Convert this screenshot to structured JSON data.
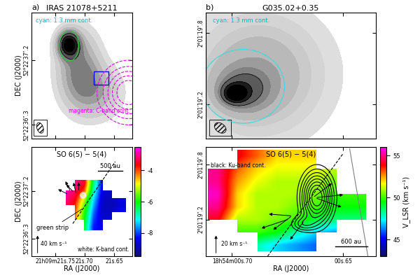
{
  "chart_data": [
    {
      "type": "contour",
      "panel": "a)",
      "title": "IRAS 21078+5211",
      "xlim": [
        21.79,
        21.619
      ],
      "ylim": [
        36.11,
        37.86
      ],
      "xticks": [
        21.75,
        21.7,
        21.65
      ],
      "yticks": [
        {
          "value": 37.2,
          "label": "52°22′37″.2"
        },
        {
          "value": 36.3,
          "label": "52°22′36″.3"
        }
      ],
      "tick_labels": "y",
      "y_label": "DEC (J2000)",
      "upper_note": {
        "text": "cyan: 1.3 mm cont.",
        "color": "#00b5c8"
      },
      "lower_note": {
        "text": "magenta: C-band cont.",
        "color": "#e000e0"
      },
      "image": {
        "color": "black",
        "components": [
          {
            "x": 21.727,
            "y": 37.42,
            "sx": 0.012,
            "sy": 0.12,
            "amp": 1.0
          },
          {
            "x": 21.71,
            "y": 37.1,
            "sx": 0.025,
            "sy": 0.35,
            "amp": 0.45
          },
          {
            "x": 21.68,
            "y": 36.75,
            "sx": 0.03,
            "sy": 0.25,
            "amp": 0.3
          }
        ],
        "fill_levels": [
          0.08,
          0.15,
          0.25,
          0.35,
          0.45,
          0.6,
          0.8,
          1.0
        ],
        "line_levels": [
          0.6,
          0.8,
          1.0,
          1.2
        ]
      },
      "contours": [
        {
          "color": "#2ecc40",
          "line_style": "solid",
          "components": [
            {
              "x": 21.726,
              "y": 37.4,
              "sx": 0.014,
              "sy": 0.18,
              "amp": 1.0
            }
          ],
          "levels": [
            0.5
          ]
        },
        {
          "color": "#e000e0",
          "line_style": "dashed",
          "components": [
            {
              "x": 21.625,
              "y": 36.75,
              "sx": 0.03,
              "sy": 0.25,
              "amp": 1.0
            }
          ],
          "levels": [
            0.2,
            0.35,
            0.5,
            0.65,
            0.8
          ]
        }
      ],
      "box": {
        "x": [
          21.684,
          21.659
        ],
        "y": [
          36.86,
          37.04
        ],
        "color": "blue"
      }
    },
    {
      "type": "contour",
      "panel": "b)",
      "title": "G035.02+0.35",
      "xlim": [
        0.7118,
        0.6353
      ],
      "ylim": [
        18.91,
        19.97
      ],
      "xticks": [
        0.7,
        0.65
      ],
      "yticks": [
        {
          "value": 19.8,
          "label": "2°01′19″.8"
        },
        {
          "value": 19.2,
          "label": "2°01′19″.2"
        }
      ],
      "tick_labels": "y",
      "upper_note": {
        "text": "cyan: 1.3 mm cont.",
        "color": "#00b5c8"
      },
      "image": {
        "color": "black",
        "components": [
          {
            "x": 0.688,
            "y": 19.45,
            "sx": 0.02,
            "sy": 0.35,
            "amp": 0.3
          },
          {
            "x": 0.695,
            "y": 19.32,
            "sx": 0.008,
            "sy": 0.12,
            "amp": 0.4
          },
          {
            "x": 0.6985,
            "y": 19.29,
            "sx": 0.0035,
            "sy": 0.05,
            "amp": 0.8
          }
        ],
        "fill_levels": [
          0.05,
          0.1,
          0.15,
          0.2,
          0.3,
          0.4,
          0.5,
          0.7,
          0.9
        ],
        "line_levels": [
          0.5,
          0.7,
          0.9,
          1.1
        ]
      },
      "contours": [
        {
          "color": "#33dddd",
          "line_style": "solid",
          "components": [
            {
              "x": 0.695,
              "y": 19.35,
              "sx": 0.012,
              "sy": 0.2,
              "amp": 1.0
            }
          ],
          "levels": [
            0.3
          ]
        }
      ]
    },
    {
      "type": "velocity_map",
      "xlim": [
        21.79,
        21.619
      ],
      "ylim": [
        35.96,
        38.04
      ],
      "xticks": [
        {
          "value": 21.75,
          "label": "21h09m21s.75"
        },
        {
          "value": 21.7,
          "label": "21s.70"
        },
        {
          "value": 21.65,
          "label": "21s.65"
        }
      ],
      "yticks": [
        {
          "value": 37.2,
          "label": "52°22′37″.2"
        },
        {
          "value": 36.3,
          "label": "52°22′36″.3"
        }
      ],
      "x_label": "RA (J2000)",
      "y_label": "DEC (J2000)",
      "upper_note": {
        "text": "SO 6(5) − 5(4)",
        "color": "black"
      },
      "lower_note": {
        "text": "white: K-band cont.",
        "color": "black"
      },
      "scale_bar": "500 au",
      "line_label": "green strip",
      "arrow_scale": {
        "value": 40,
        "label": "40 km s⁻¹"
      },
      "velocity": {
        "extent": [
          21.755,
          21.63,
          36.45,
          37.4
        ],
        "clim": [
          -9.5,
          -2.5
        ],
        "cticks": [
          -4,
          -6,
          -8
        ],
        "values": [
          [
            null,
            null,
            -3.0,
            -3.5,
            -6.5,
            -8.5,
            null,
            null
          ],
          [
            null,
            -2.8,
            -3.2,
            -4.0,
            -6.8,
            -8.6,
            -8.8,
            null
          ],
          [
            null,
            -3.0,
            -3.5,
            -5.0,
            -7.2,
            -8.7,
            -8.9,
            -8.5
          ],
          [
            null,
            -3.2,
            -3.8,
            -5.5,
            -7.5,
            -8.8,
            -8.9,
            -8.6
          ],
          [
            null,
            null,
            -4.0,
            -5.8,
            -7.8,
            -8.8,
            -8.8,
            -8.4
          ],
          [
            null,
            null,
            -4.2,
            -6.0,
            -8.0,
            -8.7,
            -8.6,
            null
          ],
          [
            null,
            null,
            null,
            -6.2,
            -8.2,
            -8.5,
            null,
            null
          ]
        ]
      },
      "contours": [
        {
          "color": "white",
          "line_style": "solid",
          "components": [
            {
              "x": 21.7025,
              "y": 37.12,
              "sx": 0.003,
              "sy": 0.035,
              "amp": 1.0
            }
          ],
          "levels": [
            0.3,
            0.6,
            0.9
          ]
        }
      ],
      "lines": [
        {
          "x": [
            21.72,
            21.648
          ],
          "y": [
            36.58,
            37.76
          ],
          "color": "black",
          "line_style": "dashed"
        }
      ],
      "arrows": [
        {
          "x": 21.72,
          "y": 37.2,
          "east": 15,
          "north": 15
        },
        {
          "x": 21.725,
          "y": 37.22,
          "east": 10,
          "north": 20
        },
        {
          "x": 21.715,
          "y": 37.18,
          "east": 5,
          "north": 22
        },
        {
          "x": 21.73,
          "y": 37.15,
          "east": 20,
          "north": 10
        },
        {
          "x": 21.71,
          "y": 37.22,
          "east": 0,
          "north": 18
        }
      ]
    },
    {
      "type": "velocity_map",
      "xlim": [
        0.7118,
        0.6353
      ],
      "ylim": [
        18.8,
        19.99
      ],
      "xticks": [
        {
          "value": 0.7,
          "label": "18h54m00s.70"
        },
        {
          "value": 0.65,
          "label": "00s.65"
        }
      ],
      "yticks": [
        {
          "value": 19.8,
          "label": "2°01′19″.8"
        },
        {
          "value": 19.2,
          "label": "2°01′19″.2"
        }
      ],
      "x_label": "RA (J2000)",
      "upper_note": {
        "text": "SO 6(5) − 5(4)",
        "color": "black"
      },
      "lower_note": {
        "text": "black: Ku-band cont.",
        "color": "black"
      },
      "scale_bar": "600 au",
      "arrow_scale": {
        "value": 20,
        "label": "20 km s⁻¹"
      },
      "velocity": {
        "extent": [
          0.711,
          0.64,
          18.85,
          19.95
        ],
        "clim": [
          43,
          56
        ],
        "cticks": [
          45,
          50,
          55
        ],
        "clabel": "V_LSR (km s⁻¹)",
        "values": [
          [
            null,
            54,
            53,
            52,
            52,
            52,
            null,
            null
          ],
          [
            55,
            53,
            52,
            51.5,
            51.5,
            51.5,
            51,
            null
          ],
          [
            55,
            52.5,
            51.5,
            51,
            51,
            51,
            50.5,
            null
          ],
          [
            55.5,
            52,
            51,
            51,
            51,
            50.5,
            50,
            50
          ],
          [
            55,
            52,
            51,
            51,
            50.5,
            50,
            49.5,
            49.5
          ],
          [
            54,
            51,
            51,
            50.5,
            50,
            49,
            48.5,
            48.5
          ],
          [
            null,
            50,
            50,
            49.5,
            48,
            47,
            46.5,
            null
          ],
          [
            null,
            null,
            48,
            47,
            46.5,
            46,
            null,
            null
          ]
        ]
      },
      "contours": [
        {
          "color": "black",
          "line_style": "solid",
          "components": [
            {
              "x": 0.6618,
              "y": 19.44,
              "sx": 0.005,
              "sy": 0.2,
              "amp": 1.0
            },
            {
              "x": 0.6685,
              "y": 19.15,
              "sx": 0.004,
              "sy": 0.06,
              "amp": 0.35
            }
          ],
          "levels": [
            0.2,
            0.3,
            0.4,
            0.5,
            0.6,
            0.7,
            0.8,
            0.9
          ]
        }
      ],
      "lines": [
        {
          "x": [
            0.684,
            0.65
          ],
          "y": [
            18.8,
            19.92
          ],
          "color": "black",
          "line_style": "dashed"
        },
        {
          "x": [
            0.6389,
            0.6471
          ],
          "y": [
            18.8,
            19.97
          ],
          "color": "gray",
          "line_style": "solid"
        }
      ],
      "arrows": [
        {
          "x": 0.6618,
          "y": 19.44,
          "east": -30,
          "north": 3
        },
        {
          "x": 0.6618,
          "y": 19.43,
          "east": -28,
          "north": -10
        },
        {
          "x": 0.663,
          "y": 19.45,
          "east": -20,
          "north": 15
        },
        {
          "x": 0.6736,
          "y": 19.24,
          "east": 25,
          "north": 2
        },
        {
          "x": 0.6736,
          "y": 19.23,
          "east": 20,
          "north": -15
        },
        {
          "x": 0.668,
          "y": 19.17,
          "east": 15,
          "north": -20
        },
        {
          "x": 0.675,
          "y": 19.2,
          "east": 30,
          "north": -10
        }
      ]
    }
  ]
}
